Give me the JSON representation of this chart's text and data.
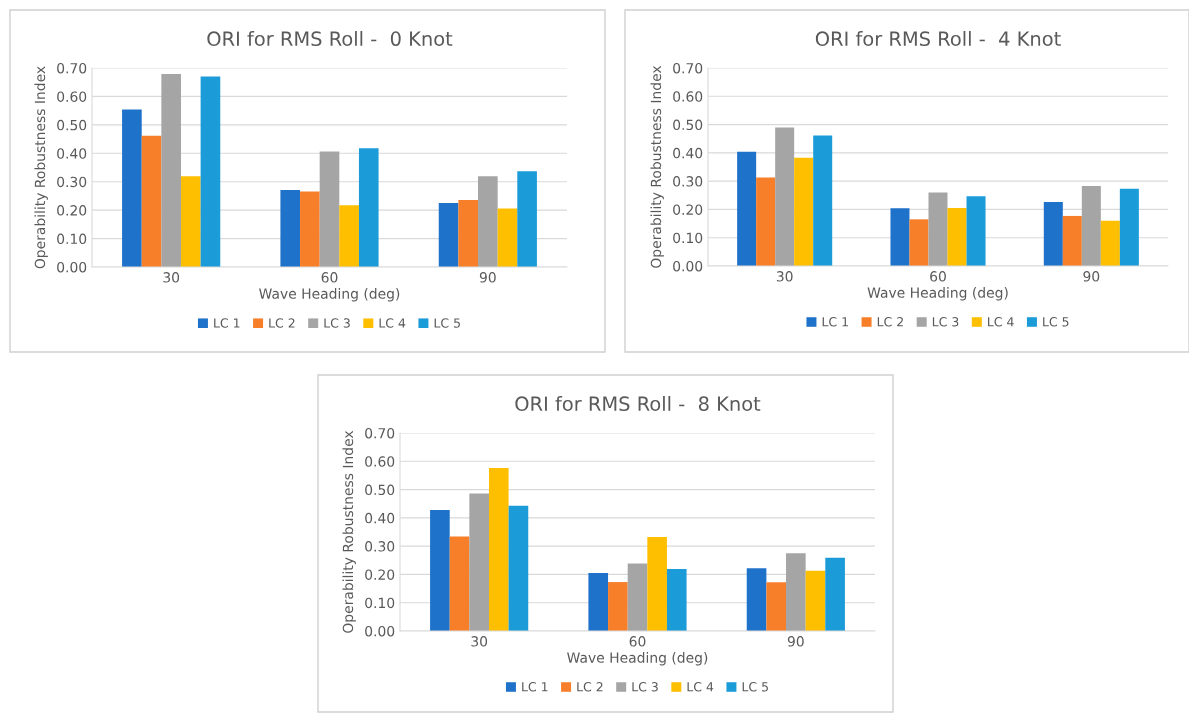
{
  "chart_data": [
    {
      "type": "bar",
      "title": "ORI for RMS Roll -  0 Knot",
      "xlabel": "Wave Heading (deg)",
      "ylabel": "Operability Robustness Index",
      "categories": [
        "30",
        "60",
        "90"
      ],
      "ylim": [
        0,
        0.7
      ],
      "yticks": [
        {
          "value": 0,
          "label": "0.00"
        },
        {
          "value": 0.1,
          "label": "0.10"
        },
        {
          "value": 0.2,
          "label": "0.20"
        },
        {
          "value": 0.3,
          "label": "0.30"
        },
        {
          "value": 0.4,
          "label": "0.40"
        },
        {
          "value": 0.5,
          "label": "0.50"
        },
        {
          "value": 0.6,
          "label": "0.60"
        },
        {
          "value": 0.7,
          "label": "0.70"
        }
      ],
      "grid": "y",
      "legend": "bottom",
      "series": [
        {
          "name": "LC 1",
          "color": "#1f72c9",
          "values": [
            0.554,
            0.271,
            0.225
          ]
        },
        {
          "name": "LC 2",
          "color": "#f87f2a",
          "values": [
            0.462,
            0.266,
            0.236
          ]
        },
        {
          "name": "LC 3",
          "color": "#a5a5a5",
          "values": [
            0.679,
            0.406,
            0.319
          ]
        },
        {
          "name": "LC 4",
          "color": "#fdbf00",
          "values": [
            0.319,
            0.217,
            0.206
          ]
        },
        {
          "name": "LC 5",
          "color": "#1b9bd8",
          "values": [
            0.67,
            0.418,
            0.337
          ]
        }
      ]
    },
    {
      "type": "bar",
      "title": "ORI for RMS Roll -  4 Knot",
      "xlabel": "Wave Heading (deg)",
      "ylabel": "Operability Robustness Index",
      "categories": [
        "30",
        "60",
        "90"
      ],
      "ylim": [
        0,
        0.7
      ],
      "yticks": [
        {
          "value": 0,
          "label": "0.00"
        },
        {
          "value": 0.1,
          "label": "0.10"
        },
        {
          "value": 0.2,
          "label": "0.20"
        },
        {
          "value": 0.3,
          "label": "0.30"
        },
        {
          "value": 0.4,
          "label": "0.40"
        },
        {
          "value": 0.5,
          "label": "0.50"
        },
        {
          "value": 0.6,
          "label": "0.60"
        },
        {
          "value": 0.7,
          "label": "0.70"
        }
      ],
      "grid": "y",
      "legend": "bottom",
      "series": [
        {
          "name": "LC 1",
          "color": "#1f72c9",
          "values": [
            0.404,
            0.204,
            0.226
          ]
        },
        {
          "name": "LC 2",
          "color": "#f87f2a",
          "values": [
            0.313,
            0.165,
            0.177
          ]
        },
        {
          "name": "LC 3",
          "color": "#a5a5a5",
          "values": [
            0.49,
            0.26,
            0.283
          ]
        },
        {
          "name": "LC 4",
          "color": "#fdbf00",
          "values": [
            0.383,
            0.205,
            0.16
          ]
        },
        {
          "name": "LC 5",
          "color": "#1b9bd8",
          "values": [
            0.461,
            0.247,
            0.273
          ]
        }
      ]
    },
    {
      "type": "bar",
      "title": "ORI for RMS Roll -  8 Knot",
      "xlabel": "Wave Heading (deg)",
      "ylabel": "Operability Robustness Index",
      "categories": [
        "30",
        "60",
        "90"
      ],
      "ylim": [
        0,
        0.7
      ],
      "yticks": [
        {
          "value": 0,
          "label": "0.00"
        },
        {
          "value": 0.1,
          "label": "0.10"
        },
        {
          "value": 0.2,
          "label": "0.20"
        },
        {
          "value": 0.3,
          "label": "0.30"
        },
        {
          "value": 0.4,
          "label": "0.40"
        },
        {
          "value": 0.5,
          "label": "0.50"
        },
        {
          "value": 0.6,
          "label": "0.60"
        },
        {
          "value": 0.7,
          "label": "0.70"
        }
      ],
      "grid": "y",
      "legend": "bottom",
      "series": [
        {
          "name": "LC 1",
          "color": "#1f72c9",
          "values": [
            0.428,
            0.205,
            0.222
          ]
        },
        {
          "name": "LC 2",
          "color": "#f87f2a",
          "values": [
            0.334,
            0.173,
            0.172
          ]
        },
        {
          "name": "LC 3",
          "color": "#a5a5a5",
          "values": [
            0.486,
            0.239,
            0.275
          ]
        },
        {
          "name": "LC 4",
          "color": "#fdbf00",
          "values": [
            0.576,
            0.332,
            0.213
          ]
        },
        {
          "name": "LC 5",
          "color": "#1b9bd8",
          "values": [
            0.443,
            0.219,
            0.259
          ]
        }
      ]
    }
  ]
}
